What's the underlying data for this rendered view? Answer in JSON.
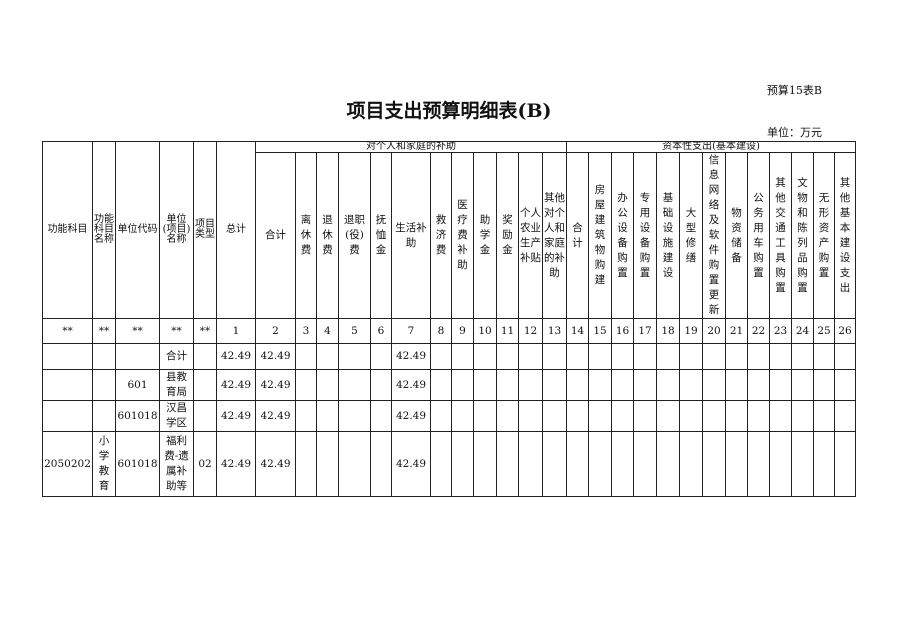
{
  "doc_tag": "预算15表B",
  "title": "项目支出预算明细表(B)",
  "unit": "单位：万元",
  "groups": {
    "personal": "对个人和家庭的补助",
    "capital": "资本性支出(基本建设)"
  },
  "lead_headers": [
    "功能科目",
    "功能科目名称",
    "单位代码",
    "单位(项目)名称",
    "项目类型",
    "总计"
  ],
  "personal_headers": [
    "合计",
    "离休费",
    "退休费",
    "退职(役)费",
    "抚恤金",
    "生活补助",
    "救济费",
    "医疗费补助",
    "助学金",
    "奖励金",
    "个人农业生产补贴",
    "其他对个人和家庭的补助"
  ],
  "capital_headers": [
    "合计",
    "房屋建筑物购建",
    "办公设备购置",
    "专用设备购置",
    "基础设施建设",
    "大型修缮",
    "信息网络及软件购置更新",
    "物资储备",
    "公务用车购置",
    "其他交通工具购置",
    "文物和陈列品购置",
    "无形资产购置",
    "其他基本建设支出"
  ],
  "numbers": [
    "**",
    "**",
    "**",
    "**",
    "**",
    "1",
    "2",
    "3",
    "4",
    "5",
    "6",
    "7",
    "8",
    "9",
    "10",
    "11",
    "12",
    "13",
    "14",
    "15",
    "16",
    "17",
    "18",
    "19",
    "20",
    "21",
    "22",
    "23",
    "24",
    "25",
    "26"
  ],
  "rows": [
    {
      "code": "",
      "name": "",
      "unit_code": "",
      "unit_name": "合计",
      "type": "",
      "total": "42.49",
      "sum": "42.49",
      "living": "42.49"
    },
    {
      "code": "",
      "name": "",
      "unit_code": "601",
      "unit_name": "县教育局",
      "type": "",
      "total": "42.49",
      "sum": "42.49",
      "living": "42.49"
    },
    {
      "code": "",
      "name": "",
      "unit_code": "601018",
      "unit_name": "汉昌学区",
      "type": "",
      "total": "42.49",
      "sum": "42.49",
      "living": "42.49"
    },
    {
      "code": "2050202",
      "name": "小学教育",
      "unit_code": "601018",
      "unit_name": "福利费-遗属补助等",
      "type": "02",
      "total": "42.49",
      "sum": "42.49",
      "living": "42.49"
    }
  ]
}
